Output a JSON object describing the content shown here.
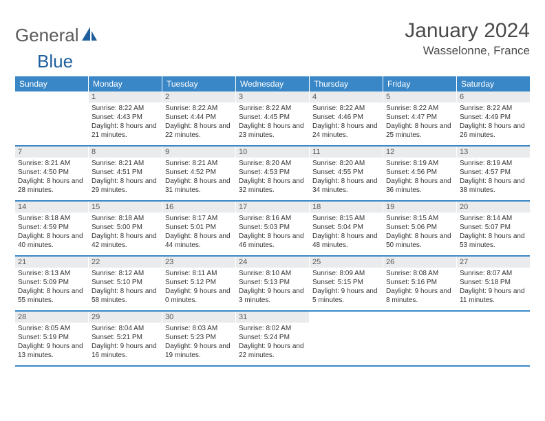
{
  "logo": {
    "text_general": "General",
    "text_blue": "Blue",
    "icon_color": "#1f5f9e"
  },
  "header": {
    "title": "January 2024",
    "location": "Wasselonne, France"
  },
  "colors": {
    "header_bg": "#3a87c7",
    "header_fg": "#ffffff",
    "daynum_bg": "#e9ebec",
    "row_border": "#3a87c7",
    "text": "#333333"
  },
  "daynames": [
    "Sunday",
    "Monday",
    "Tuesday",
    "Wednesday",
    "Thursday",
    "Friday",
    "Saturday"
  ],
  "weeks": [
    [
      null,
      {
        "n": "1",
        "sr": "8:22 AM",
        "ss": "4:43 PM",
        "dl": "8 hours and 21 minutes."
      },
      {
        "n": "2",
        "sr": "8:22 AM",
        "ss": "4:44 PM",
        "dl": "8 hours and 22 minutes."
      },
      {
        "n": "3",
        "sr": "8:22 AM",
        "ss": "4:45 PM",
        "dl": "8 hours and 23 minutes."
      },
      {
        "n": "4",
        "sr": "8:22 AM",
        "ss": "4:46 PM",
        "dl": "8 hours and 24 minutes."
      },
      {
        "n": "5",
        "sr": "8:22 AM",
        "ss": "4:47 PM",
        "dl": "8 hours and 25 minutes."
      },
      {
        "n": "6",
        "sr": "8:22 AM",
        "ss": "4:49 PM",
        "dl": "8 hours and 26 minutes."
      }
    ],
    [
      {
        "n": "7",
        "sr": "8:21 AM",
        "ss": "4:50 PM",
        "dl": "8 hours and 28 minutes."
      },
      {
        "n": "8",
        "sr": "8:21 AM",
        "ss": "4:51 PM",
        "dl": "8 hours and 29 minutes."
      },
      {
        "n": "9",
        "sr": "8:21 AM",
        "ss": "4:52 PM",
        "dl": "8 hours and 31 minutes."
      },
      {
        "n": "10",
        "sr": "8:20 AM",
        "ss": "4:53 PM",
        "dl": "8 hours and 32 minutes."
      },
      {
        "n": "11",
        "sr": "8:20 AM",
        "ss": "4:55 PM",
        "dl": "8 hours and 34 minutes."
      },
      {
        "n": "12",
        "sr": "8:19 AM",
        "ss": "4:56 PM",
        "dl": "8 hours and 36 minutes."
      },
      {
        "n": "13",
        "sr": "8:19 AM",
        "ss": "4:57 PM",
        "dl": "8 hours and 38 minutes."
      }
    ],
    [
      {
        "n": "14",
        "sr": "8:18 AM",
        "ss": "4:59 PM",
        "dl": "8 hours and 40 minutes."
      },
      {
        "n": "15",
        "sr": "8:18 AM",
        "ss": "5:00 PM",
        "dl": "8 hours and 42 minutes."
      },
      {
        "n": "16",
        "sr": "8:17 AM",
        "ss": "5:01 PM",
        "dl": "8 hours and 44 minutes."
      },
      {
        "n": "17",
        "sr": "8:16 AM",
        "ss": "5:03 PM",
        "dl": "8 hours and 46 minutes."
      },
      {
        "n": "18",
        "sr": "8:15 AM",
        "ss": "5:04 PM",
        "dl": "8 hours and 48 minutes."
      },
      {
        "n": "19",
        "sr": "8:15 AM",
        "ss": "5:06 PM",
        "dl": "8 hours and 50 minutes."
      },
      {
        "n": "20",
        "sr": "8:14 AM",
        "ss": "5:07 PM",
        "dl": "8 hours and 53 minutes."
      }
    ],
    [
      {
        "n": "21",
        "sr": "8:13 AM",
        "ss": "5:09 PM",
        "dl": "8 hours and 55 minutes."
      },
      {
        "n": "22",
        "sr": "8:12 AM",
        "ss": "5:10 PM",
        "dl": "8 hours and 58 minutes."
      },
      {
        "n": "23",
        "sr": "8:11 AM",
        "ss": "5:12 PM",
        "dl": "9 hours and 0 minutes."
      },
      {
        "n": "24",
        "sr": "8:10 AM",
        "ss": "5:13 PM",
        "dl": "9 hours and 3 minutes."
      },
      {
        "n": "25",
        "sr": "8:09 AM",
        "ss": "5:15 PM",
        "dl": "9 hours and 5 minutes."
      },
      {
        "n": "26",
        "sr": "8:08 AM",
        "ss": "5:16 PM",
        "dl": "9 hours and 8 minutes."
      },
      {
        "n": "27",
        "sr": "8:07 AM",
        "ss": "5:18 PM",
        "dl": "9 hours and 11 minutes."
      }
    ],
    [
      {
        "n": "28",
        "sr": "8:05 AM",
        "ss": "5:19 PM",
        "dl": "9 hours and 13 minutes."
      },
      {
        "n": "29",
        "sr": "8:04 AM",
        "ss": "5:21 PM",
        "dl": "9 hours and 16 minutes."
      },
      {
        "n": "30",
        "sr": "8:03 AM",
        "ss": "5:23 PM",
        "dl": "9 hours and 19 minutes."
      },
      {
        "n": "31",
        "sr": "8:02 AM",
        "ss": "5:24 PM",
        "dl": "9 hours and 22 minutes."
      },
      null,
      null,
      null
    ]
  ],
  "labels": {
    "sunrise": "Sunrise:",
    "sunset": "Sunset:",
    "daylight": "Daylight:"
  }
}
